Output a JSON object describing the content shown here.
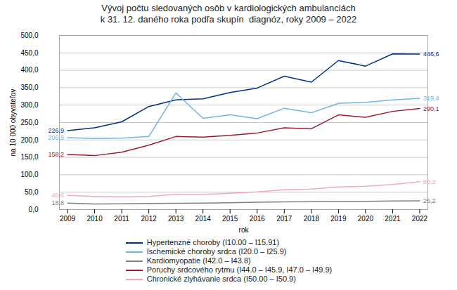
{
  "chart_data": {
    "type": "line",
    "title": "Vývoj počtu sledovaných osôb v kardiologických ambulanciách\nk 31. 12. daného roka podľa skupín  diagnóz, roky 2009 – 2022",
    "x_label": "rok",
    "y_label": "na 10 000 obyvateľov",
    "x": [
      2009,
      2010,
      2011,
      2012,
      2013,
      2014,
      2015,
      2016,
      2017,
      2018,
      2019,
      2020,
      2021,
      2022
    ],
    "series": [
      {
        "name": "Hypertenzné choroby (I10.00 – I15.91)",
        "color": "#003087",
        "values": [
          226.9,
          235.0,
          252.0,
          296.0,
          315.0,
          318.0,
          336.0,
          349.0,
          383.0,
          366.0,
          428.0,
          412.0,
          447.0,
          446.6
        ],
        "value_labels": [
          "226,9",
          null,
          null,
          null,
          null,
          null,
          null,
          null,
          null,
          null,
          null,
          null,
          null,
          "446,6"
        ]
      },
      {
        "name": "Ischemické choroby srdca (I20.0 – I25.9)",
        "color": "#6EB6E0",
        "values": [
          206.9,
          204.0,
          205.0,
          210.0,
          335.0,
          262.0,
          272.0,
          261.0,
          291.0,
          278.0,
          305.0,
          308.0,
          315.0,
          319.4
        ],
        "value_labels": [
          "206,9",
          null,
          null,
          null,
          null,
          null,
          null,
          null,
          null,
          null,
          null,
          null,
          null,
          "319,4"
        ]
      },
      {
        "name": "Kardiomyopatie (I42.0 – I43.8)",
        "color": "#808080",
        "values": [
          18.8,
          16.0,
          16.5,
          17.5,
          18.0,
          18.5,
          19.5,
          21.0,
          22.0,
          22.5,
          23.0,
          23.5,
          24.5,
          25.2
        ],
        "value_labels": [
          "18,8",
          null,
          null,
          null,
          null,
          null,
          null,
          null,
          null,
          null,
          null,
          null,
          null,
          "25,2"
        ]
      },
      {
        "name": "Poruchy srdcového rytmu (I44.0 – I45.9, I47.0 – I49.9)",
        "color": "#9B1B30",
        "values": [
          158.2,
          155.0,
          165.0,
          185.0,
          210.0,
          208.0,
          213.0,
          220.0,
          235.0,
          232.0,
          272.0,
          265.0,
          282.0,
          290.1
        ],
        "value_labels": [
          "158,2",
          null,
          null,
          null,
          null,
          null,
          null,
          null,
          null,
          null,
          null,
          null,
          null,
          "290,1"
        ]
      },
      {
        "name": "Chronické zlyhávanie srdca (I50.00 – I50.9)",
        "color": "#F4A8BB",
        "values": [
          40.6,
          38.0,
          37.0,
          38.0,
          44.0,
          44.0,
          47.0,
          51.0,
          57.0,
          59.0,
          65.0,
          67.0,
          72.0,
          80.2
        ],
        "value_labels": [
          "40,6",
          null,
          null,
          null,
          null,
          null,
          null,
          null,
          null,
          null,
          null,
          null,
          null,
          "80,2"
        ]
      }
    ],
    "xlim": [
      2008.7,
      2022.3
    ],
    "xticks": [
      2009,
      2010,
      2011,
      2012,
      2013,
      2014,
      2015,
      2016,
      2017,
      2018,
      2019,
      2020,
      2021,
      2022
    ],
    "ylim": [
      0,
      500
    ],
    "yticks": [
      {
        "value": 0,
        "label": "0,0"
      },
      {
        "value": 50,
        "label": "50,0"
      },
      {
        "value": 100,
        "label": "100,0"
      },
      {
        "value": 150,
        "label": "150,0"
      },
      {
        "value": 200,
        "label": "200,0"
      },
      {
        "value": 250,
        "label": "250,0"
      },
      {
        "value": 300,
        "label": "300,0"
      },
      {
        "value": 350,
        "label": "350,0"
      },
      {
        "value": 400,
        "label": "400,0"
      },
      {
        "value": 450,
        "label": "450,0"
      },
      {
        "value": 500,
        "label": "500,0"
      }
    ],
    "grid": true,
    "legend": "bottom",
    "data_labels": true
  }
}
